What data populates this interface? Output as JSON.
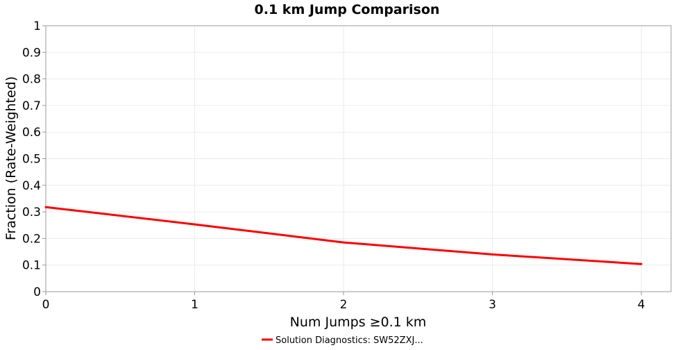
{
  "chart_data": {
    "type": "line",
    "title": "0.1 km Jump Comparison",
    "xlabel": "Num Jumps ≥0.1 km",
    "ylabel": "Fraction (Rate-Weighted)",
    "xlim": [
      0,
      4.2
    ],
    "ylim": [
      0,
      1
    ],
    "x_ticks": [
      0,
      1,
      2,
      3,
      4
    ],
    "y_ticks": [
      0,
      0.1,
      0.2,
      0.3,
      0.4,
      0.5,
      0.6,
      0.7,
      0.8,
      0.9,
      1
    ],
    "x_tick_labels": [
      "0",
      "1",
      "2",
      "3",
      "4"
    ],
    "y_tick_labels": [
      "0",
      "0.1",
      "0.2",
      "0.3",
      "0.4",
      "0.5",
      "0.6",
      "0.7",
      "0.8",
      "0.9",
      "1"
    ],
    "grid": true,
    "legend_position": "bottom-center",
    "series": [
      {
        "name": "Solution Diagnostics: SW52ZXJ...",
        "color": "#ff0000",
        "x": [
          0,
          1,
          2,
          3,
          4
        ],
        "y": [
          0.318,
          0.253,
          0.185,
          0.14,
          0.104
        ]
      }
    ]
  }
}
